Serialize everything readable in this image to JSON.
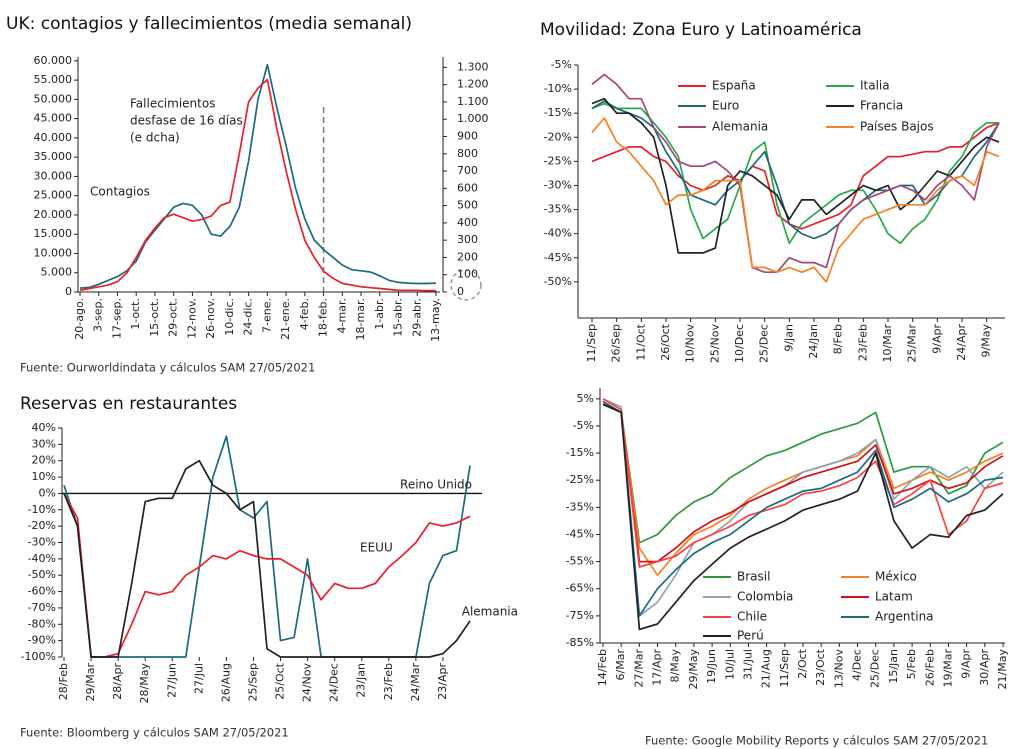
{
  "chart_data": [
    {
      "type": "line",
      "title": "UK: contagios y fallecimientos (media semanal)",
      "source": "Fuente: Ourworldindata y cálculos SAM 27/05/2021",
      "categories": [
        "20-ago.",
        null,
        "3-sep.",
        null,
        "17-sep.",
        null,
        "1-oct.",
        null,
        "15-oct.",
        null,
        "29-oct.",
        null,
        "12-nov.",
        null,
        "26-nov.",
        null,
        "10-dic.",
        null,
        "24-dic.",
        null,
        "7-ene.",
        null,
        "21-ene.",
        null,
        "4-feb.",
        null,
        "18-feb.",
        null,
        "4-mar.",
        null,
        "18-mar.",
        null,
        "1-abr.",
        null,
        "15-abr.",
        null,
        "29-abr.",
        null,
        "13-may."
      ],
      "series": [
        {
          "name": "Contagios",
          "color": "#1b6a80",
          "values": [
            1000,
            1200,
            2000,
            3000,
            4000,
            5500,
            8000,
            13000,
            16000,
            19000,
            22000,
            23000,
            22500,
            20000,
            15000,
            14500,
            17000,
            22000,
            34000,
            50000,
            59000,
            48000,
            38000,
            27000,
            19000,
            13500,
            11000,
            9000,
            7000,
            5800,
            5500,
            5200,
            4200,
            3000,
            2500,
            2300,
            2200,
            2200,
            2300
          ]
        },
        {
          "name": "Fallecimientos",
          "color": "#e8202a",
          "axis": "y2",
          "values": [
            10,
            20,
            30,
            40,
            60,
            110,
            200,
            300,
            370,
            430,
            450,
            430,
            410,
            420,
            440,
            500,
            520,
            800,
            1100,
            1180,
            1230,
            950,
            700,
            480,
            300,
            200,
            120,
            80,
            50,
            40,
            30,
            25,
            20,
            15,
            10,
            10,
            10,
            8,
            8
          ]
        }
      ],
      "annotation": [
        "desfase de 16 días",
        "(e dcha)"
      ],
      "ylim": [
        0,
        61000
      ],
      "yticks": [
        0,
        {
          "value": 5000,
          "label": "5.000"
        },
        {
          "value": 10000,
          "label": "10.000"
        },
        {
          "value": 15000,
          "label": "15.000"
        },
        {
          "value": 20000,
          "label": "20.000"
        },
        {
          "value": 25000,
          "label": "25.000"
        },
        {
          "value": 30000,
          "label": "30.000"
        },
        {
          "value": 35000,
          "label": "35.000"
        },
        {
          "value": 40000,
          "label": "40.000"
        },
        {
          "value": 45000,
          "label": "45.000"
        },
        {
          "value": 50000,
          "label": "50.000"
        },
        {
          "value": 55000,
          "label": "55.000"
        },
        {
          "value": 60000,
          "label": "60.000"
        }
      ],
      "y2lim": [
        0,
        1360
      ],
      "y2ticks": [
        0,
        100,
        200,
        300,
        400,
        500,
        600,
        700,
        800,
        900,
        {
          "value": 1000,
          "label": "1.000"
        },
        {
          "value": 1100,
          "label": "1.100"
        },
        {
          "value": 1200,
          "label": "1.200"
        },
        {
          "value": 1300,
          "label": "1.300"
        }
      ]
    },
    {
      "type": "line",
      "title": "Movilidad: Zona Euro y Latinoamérica",
      "categories": [
        "11/Sep",
        null,
        "26/Sep",
        null,
        "11/Oct",
        null,
        "26/Oct",
        null,
        "10/Nov",
        null,
        "25/Nov",
        null,
        "10/Dec",
        null,
        "25/Dec",
        null,
        "9/Jan",
        null,
        "24/Jan",
        null,
        "8/Feb",
        null,
        "23/Feb",
        null,
        "10/Mar",
        null,
        "25/Mar",
        null,
        "9/Apr",
        null,
        "24/Apr",
        null,
        "9/May",
        null
      ],
      "series": [
        {
          "name": "España",
          "color": "#e8202a",
          "values": [
            -25,
            -24,
            -23,
            -22,
            -22,
            -24,
            -25,
            -28,
            -30,
            -31,
            -30,
            -28,
            -29,
            -26,
            -27,
            -36,
            -38,
            -39,
            -38,
            -37,
            -36,
            -34,
            -28,
            -26,
            -24,
            -24,
            -23.5,
            -23,
            -23,
            -22,
            -22,
            -20,
            -18,
            -17
          ]
        },
        {
          "name": "Italia",
          "color": "#2aa84a",
          "values": [
            -14,
            -13,
            -14,
            -14,
            -14,
            -17,
            -20,
            -24,
            -35,
            -41,
            -39,
            -37,
            -30,
            -23,
            -21,
            -34,
            -42,
            -38,
            -36,
            -34,
            -32,
            -31,
            -31,
            -35,
            -40,
            -42,
            -39,
            -37,
            -33,
            -27,
            -24,
            -19,
            -17,
            -17
          ]
        },
        {
          "name": "Euro",
          "color": "#1b6a80",
          "values": [
            -14,
            -12.5,
            -14,
            -15,
            -16,
            -18,
            -23,
            -27,
            -32,
            -33,
            -34,
            -31,
            -29,
            -26,
            -23,
            -30,
            -38,
            -40,
            -41,
            -40,
            -38,
            -35,
            -33,
            -31,
            -31,
            -30,
            -30,
            -34,
            -32,
            -29,
            -28,
            -24,
            -21,
            -17
          ]
        },
        {
          "name": "Francia",
          "color": "#222222",
          "values": [
            -13,
            -12,
            -15,
            -15,
            -17,
            -20,
            -30,
            -44,
            -44,
            -44,
            -43,
            -30,
            -27,
            -28,
            -30,
            -32,
            -37,
            -33,
            -33,
            -36,
            -34,
            -32,
            -30,
            -31,
            -30,
            -35,
            -33,
            -30,
            -27,
            -28,
            -25,
            -22,
            -20,
            -21
          ]
        },
        {
          "name": "Alemania",
          "color": "#a3467c",
          "values": [
            -9,
            -7,
            -9,
            -12,
            -12,
            -18,
            -21,
            -25,
            -26,
            -26,
            -25,
            -27,
            -30,
            -47,
            -48,
            -48,
            -45,
            -46,
            -46,
            -47,
            -38,
            -35,
            -33,
            -32,
            -31,
            -30,
            -31,
            -33,
            -30,
            -28,
            -30,
            -33,
            -22,
            -17
          ]
        },
        {
          "name": "Países Bajos",
          "color": "#f58220",
          "values": [
            -19,
            -16,
            -21,
            -23,
            -26,
            -29,
            -34,
            -32,
            -32,
            -31,
            -29,
            -29,
            -29,
            -47,
            -47,
            -48,
            -47,
            -48,
            -47,
            -50,
            -43,
            -40,
            -37,
            -36,
            -35,
            -34,
            -34,
            -34,
            -31,
            -29,
            -28,
            -30,
            -23,
            -24
          ]
        }
      ],
      "ylim": [
        -57.5,
        -5
      ],
      "yticks": [
        {
          "value": -5,
          "label": "-5%"
        },
        {
          "value": -10,
          "label": "-10%"
        },
        {
          "value": -15,
          "label": "-15%"
        },
        {
          "value": -20,
          "label": "-20%"
        },
        {
          "value": -25,
          "label": "-25%"
        },
        {
          "value": -30,
          "label": "-30%"
        },
        {
          "value": -35,
          "label": "-35%"
        },
        {
          "value": -40,
          "label": "-40%"
        },
        {
          "value": -45,
          "label": "-45%"
        },
        {
          "value": -50,
          "label": "-50%"
        }
      ]
    },
    {
      "type": "line",
      "title": "Reservas en restaurantes",
      "source": "Fuente: Bloomberg y cálculos SAM 27/05/2021",
      "categories": [
        "28/Feb",
        null,
        "29/Mar",
        null,
        "28/Apr",
        null,
        "28/May",
        null,
        "27/Jun",
        null,
        "27/Jul",
        null,
        "26/Aug",
        null,
        "25/Sep",
        null,
        "25/Oct",
        null,
        "24/Nov",
        null,
        "24/Dec",
        null,
        "23/Jan",
        null,
        "23/Feb",
        null,
        "24/Mar",
        null,
        "23/Apr",
        null,
        null
      ],
      "series": [
        {
          "name": "Reino Unido",
          "color": "#1b6a80",
          "values": [
            5,
            -20,
            -100,
            -100,
            -100,
            -100,
            -100,
            -100,
            -100,
            -100,
            -45,
            10,
            35,
            -10,
            -15,
            -5,
            -90,
            -88,
            -40,
            -100,
            -100,
            -100,
            -100,
            -100,
            -100,
            -100,
            -100,
            -55,
            -38,
            -35,
            17
          ]
        },
        {
          "name": "EEUU",
          "color": "#e8202a",
          "values": [
            0,
            -15,
            -100,
            -100,
            -98,
            -80,
            -60,
            -62,
            -60,
            -50,
            -45,
            -38,
            -40,
            -35,
            -38,
            -40,
            -40,
            -45,
            -50,
            -65,
            -55,
            -58,
            -58,
            -55,
            -45,
            -38,
            -30,
            -18,
            -20,
            -18,
            -14
          ]
        },
        {
          "name": "Alemania",
          "color": "#222222",
          "values": [
            0,
            -20,
            -100,
            -100,
            -100,
            -55,
            -5,
            -3,
            -3,
            15,
            20,
            5,
            0,
            -10,
            -5,
            -95,
            -100,
            -100,
            -100,
            -100,
            -100,
            -100,
            -100,
            -100,
            -100,
            -100,
            -100,
            -100,
            -98,
            -90,
            -78
          ]
        }
      ],
      "zero_line": true,
      "ylim": [
        -100,
        40
      ],
      "yticks": [
        {
          "value": 40,
          "label": "40%"
        },
        {
          "value": 30,
          "label": "30%"
        },
        {
          "value": 20,
          "label": "20%"
        },
        {
          "value": 10,
          "label": "10%"
        },
        {
          "value": 0,
          "label": "0%"
        },
        {
          "value": -10,
          "label": "-10%"
        },
        {
          "value": -20,
          "label": "-20%"
        },
        {
          "value": -30,
          "label": "-30%"
        },
        {
          "value": -40,
          "label": "-40%"
        },
        {
          "value": -50,
          "label": "-50%"
        },
        {
          "value": -60,
          "label": "-60%"
        },
        {
          "value": -70,
          "label": "-70%"
        },
        {
          "value": -80,
          "label": "-80%"
        },
        {
          "value": -90,
          "label": "-90%"
        },
        {
          "value": -100,
          "label": "-100%"
        }
      ]
    },
    {
      "type": "line",
      "source": "Fuente: Google Mobility Reports y cálculos SAM 27/05/2021",
      "categories": [
        "14/Feb",
        "6/Mar",
        "27/Mar",
        "17/Apr",
        "8/May",
        "29/May",
        "19/Jun",
        "10/Jul",
        "31/Jul",
        "21/Aug",
        "11/Sep",
        "2/Oct",
        "23/Oct",
        "13/Nov",
        "4/Dec",
        "25/Dec",
        "15/Jan",
        "5/Feb",
        "26/Feb",
        "19/Mar",
        "9/Apr",
        "30/Apr",
        "21/May"
      ],
      "series": [
        {
          "name": "Brasil",
          "color": "#2a9a3a",
          "values": [
            3,
            0,
            -48,
            -45,
            -38,
            -33,
            -30,
            -24,
            -20,
            -16,
            -14,
            -11,
            -8,
            -6,
            -4,
            0,
            -22,
            -20,
            -20,
            -30,
            -27,
            -15,
            -11
          ]
        },
        {
          "name": "México",
          "color": "#f58220",
          "values": [
            4,
            0,
            -50,
            -60,
            -52,
            -45,
            -42,
            -38,
            -32,
            -28,
            -25,
            -22,
            -20,
            -18,
            -16,
            -10,
            -28,
            -25,
            -22,
            -25,
            -22,
            -18,
            -15
          ]
        },
        {
          "name": "Colombia",
          "color": "#8fa3b3",
          "values": [
            5,
            2,
            -75,
            -70,
            -60,
            -48,
            -45,
            -40,
            -33,
            -30,
            -27,
            -22,
            -20,
            -18,
            -15,
            -10,
            -32,
            -25,
            -20,
            -24,
            -20,
            -28,
            -22
          ]
        },
        {
          "name": "Latam",
          "color": "#d4101c",
          "values": [
            3,
            0,
            -55,
            -55,
            -50,
            -44,
            -40,
            -37,
            -33,
            -30,
            -27,
            -24,
            -22,
            -20,
            -18,
            -12,
            -30,
            -28,
            -25,
            -28,
            -26,
            -20,
            -16
          ]
        },
        {
          "name": "Chile",
          "color": "#ff4040",
          "values": [
            5,
            1,
            -57,
            -55,
            -53,
            -48,
            -45,
            -42,
            -38,
            -36,
            -34,
            -30,
            -29,
            -27,
            -24,
            -18,
            -34,
            -30,
            -25,
            -45,
            -40,
            -28,
            -26
          ]
        },
        {
          "name": "Argentina",
          "color": "#1b6a80",
          "values": [
            4,
            0,
            -75,
            -65,
            -58,
            -52,
            -48,
            -45,
            -40,
            -35,
            -32,
            -29,
            -28,
            -25,
            -22,
            -14,
            -35,
            -32,
            -28,
            -33,
            -30,
            -25,
            -24
          ]
        },
        {
          "name": "Perú",
          "color": "#222222",
          "values": [
            3,
            0,
            -80,
            -78,
            -70,
            -62,
            -56,
            -50,
            -46,
            -43,
            -40,
            -36,
            -34,
            -32,
            -29,
            -15,
            -40,
            -50,
            -45,
            -46,
            -38,
            -36,
            -30
          ]
        }
      ],
      "ylim": [
        -85,
        9
      ],
      "yticks": [
        {
          "value": 5,
          "label": "5%"
        },
        {
          "value": -5,
          "label": "-5%"
        },
        {
          "value": -15,
          "label": "-15%"
        },
        {
          "value": -25,
          "label": "-25%"
        },
        {
          "value": -35,
          "label": "-35%"
        },
        {
          "value": -45,
          "label": "-45%"
        },
        {
          "value": -55,
          "label": "-55%"
        },
        {
          "value": -65,
          "label": "-65%"
        },
        {
          "value": -75,
          "label": "-75%"
        },
        {
          "value": -85,
          "label": "-85%"
        }
      ]
    }
  ]
}
